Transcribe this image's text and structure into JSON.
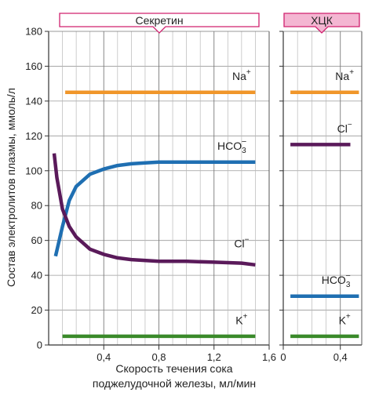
{
  "chart_data": {
    "type": "line",
    "ylabel": "Состав электролитов плазмы, ммоль/л",
    "xlabel_line1": "Скорость течения сока",
    "xlabel_line2": "поджелудочной железы, мл/мин",
    "ylim": [
      0,
      180
    ],
    "yticks": [
      "0",
      "20",
      "40",
      "60",
      "80",
      "100",
      "120",
      "140",
      "160",
      "180"
    ],
    "grid": true,
    "panels": [
      {
        "id": "secretin",
        "banner": "Секретин",
        "banner_color": "#d0206e",
        "xlim": [
          0,
          1.6
        ],
        "xticks": [
          {
            "value": 0.4,
            "label": "0,4"
          },
          {
            "value": 0.8,
            "label": "0,8"
          },
          {
            "value": 1.2,
            "label": "1,2"
          },
          {
            "value": 1.6,
            "label": "1,6"
          }
        ],
        "series": [
          {
            "name": "Na",
            "sup": "+",
            "sub": "",
            "color": "#f0962a",
            "label_x": 1.4,
            "label_y": 152,
            "x": [
              0.12,
              1.5
            ],
            "y": [
              145,
              145
            ]
          },
          {
            "name": "HCO",
            "sup": "−",
            "sub": "3",
            "color": "#1f6fb2",
            "label_x": 1.33,
            "label_y": 112,
            "x": [
              0.05,
              0.1,
              0.15,
              0.2,
              0.3,
              0.4,
              0.5,
              0.6,
              0.7,
              0.8,
              1.0,
              1.2,
              1.4,
              1.5
            ],
            "y": [
              51,
              68,
              83,
              91,
              98,
              101,
              103,
              104,
              104.5,
              105,
              105,
              105,
              105,
              105
            ]
          },
          {
            "name": "Cl",
            "sup": "−",
            "sub": "",
            "color": "#5a1a5a",
            "label_x": 1.4,
            "label_y": 56,
            "x": [
              0.04,
              0.06,
              0.1,
              0.15,
              0.2,
              0.3,
              0.4,
              0.5,
              0.6,
              0.8,
              1.0,
              1.2,
              1.4,
              1.5
            ],
            "y": [
              110,
              96,
              78,
              68,
              62,
              55,
              52,
              50,
              49,
              48,
              48,
              47.5,
              47,
              46
            ]
          },
          {
            "name": "K",
            "sup": "+",
            "sub": "",
            "color": "#3a8a2a",
            "label_x": 1.4,
            "label_y": 12,
            "x": [
              0.1,
              1.5
            ],
            "y": [
              5,
              5
            ]
          }
        ]
      },
      {
        "id": "cck",
        "banner": "ХЦК",
        "banner_color": "#d0206e",
        "xlim": [
          0,
          0.55
        ],
        "xticks": [
          {
            "value": 0,
            "label": "0"
          },
          {
            "value": 0.4,
            "label": "0,4"
          }
        ],
        "series": [
          {
            "name": "Na",
            "sup": "+",
            "sub": "",
            "color": "#f0962a",
            "label_x": 0.43,
            "label_y": 152,
            "x": [
              0.05,
              0.53
            ],
            "y": [
              145,
              145
            ]
          },
          {
            "name": "Cl",
            "sup": "−",
            "sub": "",
            "color": "#5a1a5a",
            "label_x": 0.43,
            "label_y": 122,
            "x": [
              0.05,
              0.47
            ],
            "y": [
              115,
              115
            ]
          },
          {
            "name": "HCO",
            "sup": "−",
            "sub": "3",
            "color": "#1f6fb2",
            "label_x": 0.37,
            "label_y": 35,
            "x": [
              0.05,
              0.53
            ],
            "y": [
              28,
              28
            ]
          },
          {
            "name": "K",
            "sup": "+",
            "sub": "",
            "color": "#3a8a2a",
            "label_x": 0.43,
            "label_y": 12,
            "x": [
              0.05,
              0.53
            ],
            "y": [
              5,
              5
            ]
          }
        ]
      }
    ]
  }
}
